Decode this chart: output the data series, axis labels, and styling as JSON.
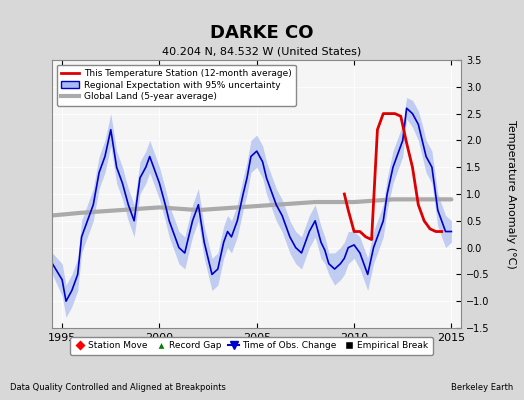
{
  "title": "DARKE CO",
  "subtitle": "40.204 N, 84.532 W (United States)",
  "ylabel": "Temperature Anomaly (°C)",
  "xlabel_bottom_left": "Data Quality Controlled and Aligned at Breakpoints",
  "xlabel_bottom_right": "Berkeley Earth",
  "ylim": [
    -1.5,
    3.5
  ],
  "xlim": [
    1994.5,
    2015.5
  ],
  "xticks": [
    1995,
    2000,
    2005,
    2010,
    2015
  ],
  "yticks": [
    -1.5,
    -1.0,
    -0.5,
    0.0,
    0.5,
    1.0,
    1.5,
    2.0,
    2.5,
    3.0,
    3.5
  ],
  "background_color": "#e8e8e8",
  "plot_bg_color": "#f5f5f5",
  "blue_line_color": "#0000cc",
  "blue_shade_color": "#aabbee",
  "red_line_color": "#dd0000",
  "gray_line_color": "#aaaaaa",
  "legend1_entries": [
    "This Temperature Station (12-month average)",
    "Regional Expectation with 95% uncertainty",
    "Global Land (5-year average)"
  ],
  "legend2_entries": [
    "Station Move",
    "Record Gap",
    "Time of Obs. Change",
    "Empirical Break"
  ],
  "time_start": 1994.5,
  "time_end": 2015.0,
  "blue_data_x": [
    1994.5,
    1995.0,
    1995.2,
    1995.5,
    1995.8,
    1996.0,
    1996.3,
    1996.6,
    1996.9,
    1997.2,
    1997.5,
    1997.8,
    1998.1,
    1998.4,
    1998.7,
    1999.0,
    1999.3,
    1999.5,
    1999.7,
    2000.0,
    2000.3,
    2000.5,
    2000.7,
    2001.0,
    2001.3,
    2001.5,
    2001.7,
    2002.0,
    2002.3,
    2002.5,
    2002.7,
    2003.0,
    2003.3,
    2003.5,
    2003.7,
    2004.0,
    2004.3,
    2004.5,
    2004.7,
    2005.0,
    2005.3,
    2005.5,
    2005.7,
    2006.0,
    2006.3,
    2006.5,
    2006.7,
    2007.0,
    2007.3,
    2007.5,
    2007.7,
    2008.0,
    2008.3,
    2008.5,
    2008.7,
    2009.0,
    2009.3,
    2009.5,
    2009.7,
    2010.0,
    2010.3,
    2010.5,
    2010.7,
    2011.0,
    2011.3,
    2011.5,
    2011.7,
    2012.0,
    2012.3,
    2012.5,
    2012.7,
    2013.0,
    2013.3,
    2013.5,
    2013.7,
    2014.0,
    2014.3,
    2014.5,
    2014.7,
    2015.0
  ],
  "blue_data_y": [
    -0.3,
    -0.6,
    -1.0,
    -0.8,
    -0.5,
    0.2,
    0.5,
    0.8,
    1.4,
    1.7,
    2.2,
    1.5,
    1.2,
    0.8,
    0.5,
    1.3,
    1.5,
    1.7,
    1.5,
    1.2,
    0.8,
    0.5,
    0.3,
    0.0,
    -0.1,
    0.2,
    0.5,
    0.8,
    0.1,
    -0.2,
    -0.5,
    -0.4,
    0.1,
    0.3,
    0.2,
    0.5,
    1.0,
    1.3,
    1.7,
    1.8,
    1.6,
    1.3,
    1.1,
    0.8,
    0.6,
    0.4,
    0.2,
    0.0,
    -0.1,
    0.1,
    0.3,
    0.5,
    0.1,
    -0.05,
    -0.3,
    -0.4,
    -0.3,
    -0.2,
    0.0,
    0.05,
    -0.1,
    -0.3,
    -0.5,
    0.0,
    0.3,
    0.5,
    1.0,
    1.5,
    1.8,
    2.0,
    2.6,
    2.5,
    2.3,
    2.0,
    1.7,
    1.5,
    0.7,
    0.5,
    0.3,
    0.3
  ],
  "blue_shade_upper": [
    -0.1,
    -0.3,
    -0.7,
    -0.5,
    -0.2,
    0.5,
    0.8,
    1.1,
    1.7,
    2.0,
    2.5,
    1.8,
    1.5,
    1.1,
    0.8,
    1.6,
    1.8,
    2.0,
    1.8,
    1.5,
    1.1,
    0.8,
    0.6,
    0.3,
    0.2,
    0.5,
    0.8,
    1.1,
    0.4,
    0.1,
    -0.2,
    -0.1,
    0.4,
    0.6,
    0.5,
    0.8,
    1.3,
    1.6,
    2.0,
    2.1,
    1.9,
    1.6,
    1.4,
    1.1,
    0.9,
    0.7,
    0.5,
    0.3,
    0.2,
    0.4,
    0.6,
    0.8,
    0.4,
    0.2,
    -0.1,
    -0.1,
    0.0,
    0.1,
    0.3,
    0.3,
    0.2,
    0.0,
    -0.2,
    0.3,
    0.6,
    0.8,
    1.3,
    1.8,
    2.1,
    2.3,
    2.8,
    2.75,
    2.55,
    2.3,
    2.0,
    1.8,
    1.0,
    0.8,
    0.6,
    0.5
  ],
  "blue_shade_lower": [
    -0.5,
    -0.9,
    -1.3,
    -1.1,
    -0.8,
    -0.1,
    0.2,
    0.5,
    1.1,
    1.4,
    1.9,
    1.2,
    0.9,
    0.5,
    0.2,
    1.0,
    1.2,
    1.4,
    1.2,
    0.9,
    0.5,
    0.2,
    0.0,
    -0.3,
    -0.4,
    -0.1,
    0.2,
    0.5,
    -0.2,
    -0.5,
    -0.8,
    -0.7,
    -0.2,
    0.0,
    -0.1,
    0.2,
    0.7,
    1.0,
    1.4,
    1.5,
    1.3,
    1.0,
    0.8,
    0.5,
    0.3,
    0.1,
    -0.1,
    -0.3,
    -0.4,
    -0.2,
    0.0,
    0.2,
    -0.2,
    -0.3,
    -0.5,
    -0.7,
    -0.6,
    -0.5,
    -0.3,
    -0.2,
    -0.4,
    -0.6,
    -0.8,
    -0.3,
    0.0,
    0.2,
    0.7,
    1.2,
    1.5,
    1.7,
    2.4,
    2.25,
    2.0,
    1.7,
    1.4,
    1.2,
    0.4,
    0.2,
    0.0,
    0.1
  ],
  "red_data_x": [
    2009.5,
    2009.7,
    2010.0,
    2010.3,
    2010.6,
    2010.9,
    2011.2,
    2011.5,
    2011.8,
    2012.1,
    2012.4,
    2012.7,
    2013.0,
    2013.3,
    2013.6,
    2013.9,
    2014.2,
    2014.5
  ],
  "red_data_y": [
    1.0,
    0.7,
    0.3,
    0.3,
    0.2,
    0.15,
    2.2,
    2.5,
    2.5,
    2.5,
    2.45,
    1.95,
    1.5,
    0.8,
    0.5,
    0.35,
    0.3,
    0.3
  ],
  "gray_data_x": [
    1994.5,
    1996.0,
    1998.0,
    2000.0,
    2002.0,
    2004.0,
    2006.0,
    2008.0,
    2010.0,
    2012.0,
    2014.0,
    2015.0
  ],
  "gray_data_y": [
    0.6,
    0.65,
    0.7,
    0.75,
    0.7,
    0.75,
    0.8,
    0.85,
    0.85,
    0.9,
    0.9,
    0.9
  ]
}
